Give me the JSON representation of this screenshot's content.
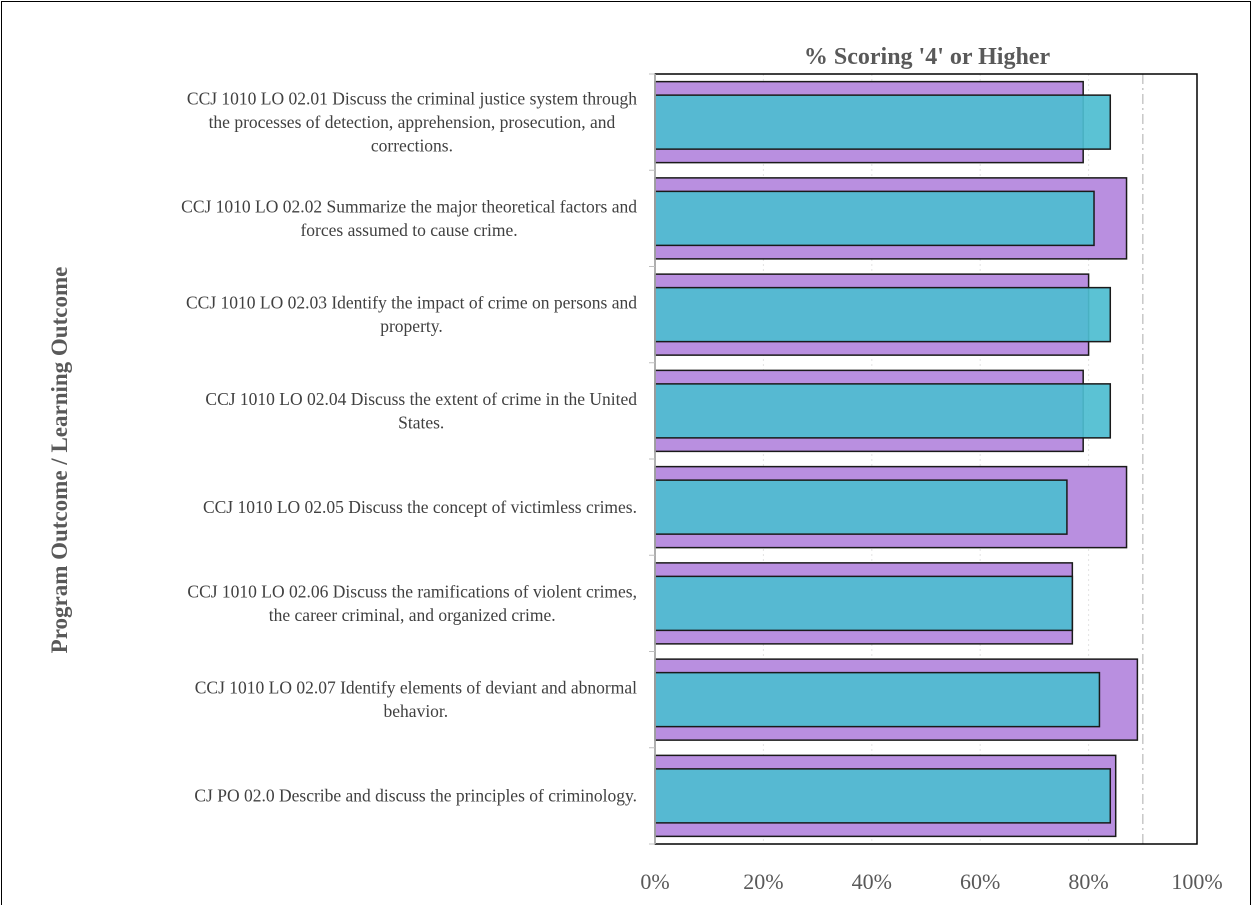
{
  "chart_data": {
    "type": "bar",
    "orientation": "horizontal",
    "title": "% Scoring '4' or Higher",
    "xlabel": "",
    "ylabel": "Program Outcome / Learning Outcome",
    "xlim": [
      0,
      100
    ],
    "x_ticks": [
      "0%",
      "20%",
      "40%",
      "60%",
      "80%",
      "100%"
    ],
    "categories": [
      [
        "CCJ 1010 LO 02.01 Discuss the criminal justice system through",
        "the processes of detection, apprehension, prosecution, and",
        "corrections."
      ],
      [
        "CCJ 1010 LO 02.02 Summarize the major theoretical factors and",
        "forces assumed to cause crime."
      ],
      [
        "CCJ 1010 LO 02.03 Identify the impact of crime on persons and",
        "property."
      ],
      [
        "CCJ 1010 LO 02.04 Discuss the extent of crime in the United",
        "States."
      ],
      [
        "CCJ 1010 LO 02.05 Discuss the concept of victimless crimes."
      ],
      [
        "CCJ 1010 LO 02.06 Discuss the ramifications of violent crimes,",
        "the career criminal, and organized crime."
      ],
      [
        "CCJ 1010 LO 02.07 Identify elements of deviant and abnormal",
        "behavior."
      ],
      [
        "CJ PO 02.0 Describe and discuss the principles of criminology."
      ]
    ],
    "series": [
      {
        "values": [
          79,
          87,
          80,
          79,
          87,
          77,
          89,
          85
        ],
        "color": "#b98fe0"
      },
      {
        "values": [
          84,
          81,
          84,
          84,
          76,
          77,
          82,
          84
        ],
        "color": "#4dbdd0"
      }
    ],
    "reference_line": {
      "value": 90,
      "style": "dash-dot",
      "color": "#c8c8c8"
    },
    "grid": "vertical-dotted",
    "legend": "none"
  }
}
